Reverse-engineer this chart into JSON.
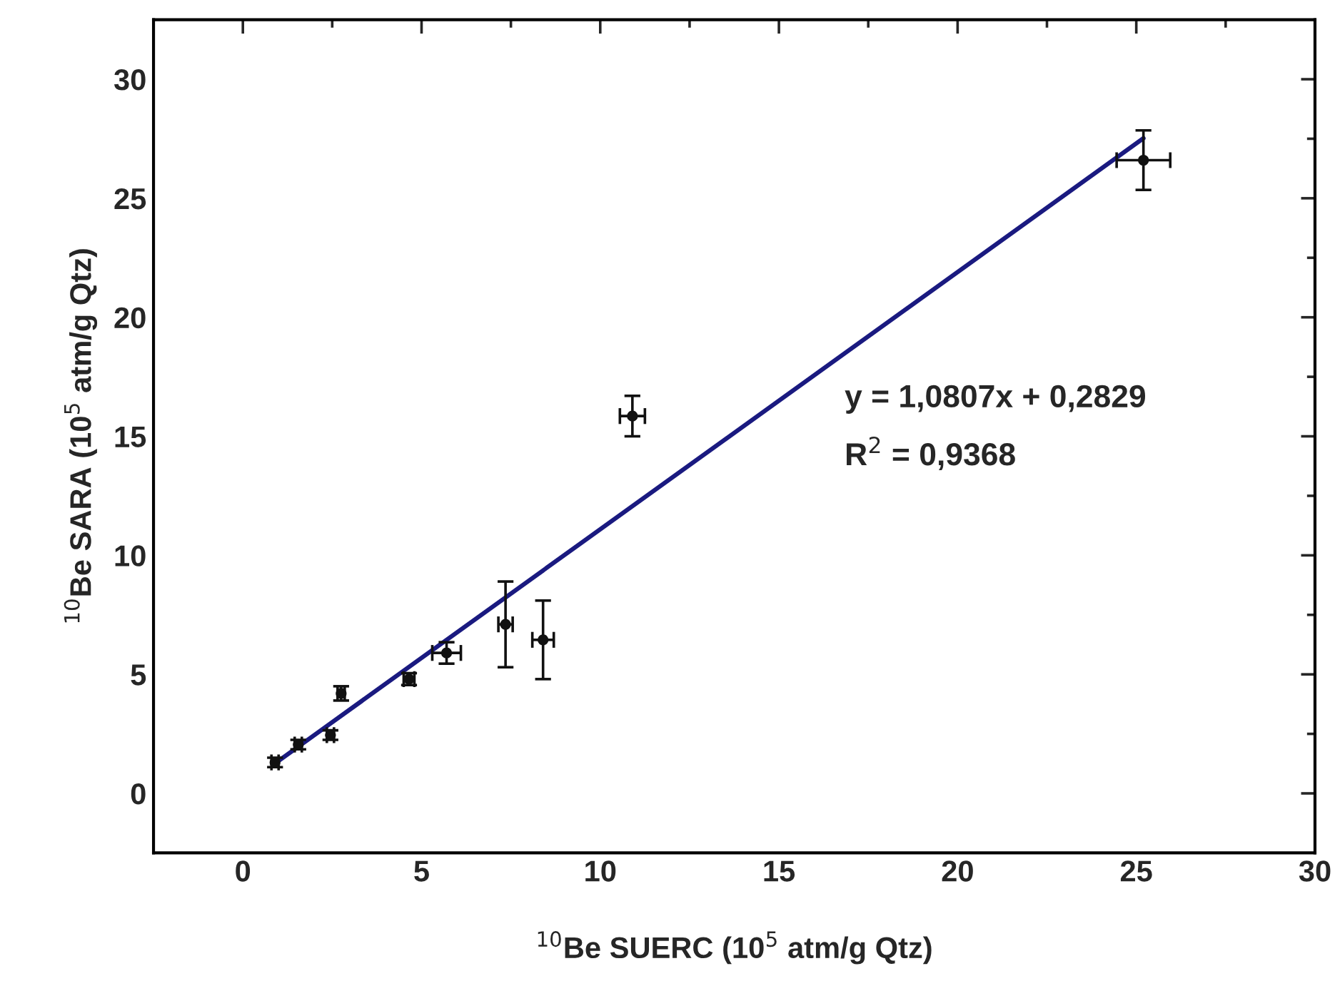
{
  "chart_data": {
    "type": "scatter",
    "xlabel": "$^{10}$Be SUERC (10$^{5}$ atm/g Qtz)",
    "ylabel": "$^{10}$Be SARA (10$^{5}$ atm/g Qtz)",
    "annotations": [
      "y = 1,0807x + 0,2829",
      "R$^{2}$ = 0,9368"
    ],
    "xlim": [
      -2.5,
      30
    ],
    "ylim": [
      -2.5,
      32.5
    ],
    "xticks": [
      0,
      {
        "value": 2.5,
        "label": null
      },
      5,
      {
        "value": 7.5,
        "label": null
      },
      10,
      {
        "value": 12.5,
        "label": null
      },
      15,
      {
        "value": 17.5,
        "label": null
      },
      20,
      {
        "value": 22.5,
        "label": null
      },
      25,
      {
        "value": 27.5,
        "label": null
      },
      30
    ],
    "yticks": [
      0,
      {
        "value": 2.5,
        "label": null
      },
      5,
      {
        "value": 7.5,
        "label": null
      },
      10,
      {
        "value": 12.5,
        "label": null
      },
      15,
      {
        "value": 17.5,
        "label": null
      },
      20,
      {
        "value": 22.5,
        "label": null
      },
      25,
      {
        "value": 27.5,
        "label": null
      },
      30
    ],
    "grid": false,
    "legend": false,
    "marker": "circle",
    "series": [
      {
        "color": "#111111",
        "x": [
          0.9,
          1.55,
          2.45,
          2.75,
          4.65,
          5.7,
          7.35,
          8.4,
          10.9,
          25.2
        ],
        "values": [
          1.3,
          2.05,
          2.45,
          4.2,
          4.8,
          5.9,
          7.1,
          6.45,
          15.85,
          26.6
        ],
        "errors": [
          0.2,
          0.2,
          0.2,
          0.3,
          0.25,
          0.45,
          1.8,
          1.65,
          0.85,
          1.25
        ],
        "xerrors": [
          0.1,
          0.1,
          0.1,
          0.1,
          0.15,
          0.4,
          0.2,
          0.3,
          0.35,
          0.75
        ]
      },
      {
        "type": "line",
        "color": "#1a1a80",
        "line_style": "solid",
        "marker": "none",
        "x": [
          0.9,
          25.2
        ],
        "values": [
          1.26,
          27.52
        ]
      }
    ]
  }
}
